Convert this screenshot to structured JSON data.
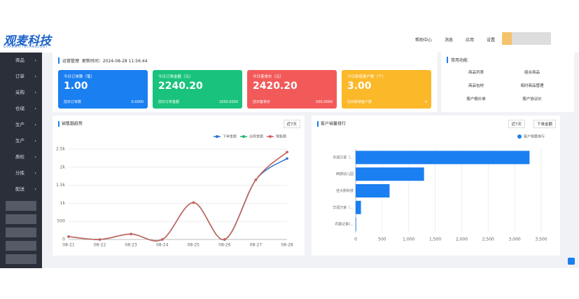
{
  "header": {
    "logo": "观麦科技",
    "logo_sub": "GUANMAITECHNOLOGY",
    "nav": [
      "帮助中心",
      "消息",
      "应用",
      "设置"
    ]
  },
  "sidebar": {
    "items": [
      "商品",
      "订单",
      "采购",
      "仓储",
      "生产",
      "生产",
      "质检",
      "分拣",
      "配送"
    ]
  },
  "summary": {
    "breadcrumb": "运营管理",
    "update_label": "更新时间：2024-08-28 11:56:44",
    "cards": [
      {
        "title": "今日订单数（笔）",
        "value": "1.00",
        "sub_label": "前日订单数",
        "sub_value": "0.0000"
      },
      {
        "title": "今日订单金额（元）",
        "value": "2240.20",
        "sub_label": "前日订单金额",
        "sub_value": "1650.0000"
      },
      {
        "title": "今日客单价（元）",
        "value": "2420.20",
        "sub_label": "前日客单价",
        "sub_value": "550.0000"
      },
      {
        "title": "今日新增客户数（个）",
        "value": "3.00",
        "sub_label": "前日新增客户数",
        "sub_value": "0"
      }
    ]
  },
  "shortcuts": {
    "title": "常用功能",
    "items": [
      "商品列表",
      "组合商品",
      "商品包材",
      "临时商品管理",
      "客户报价单",
      "客户协议价"
    ]
  },
  "chart_data": [
    {
      "type": "line",
      "title": "销售额趋势",
      "filter": "近7天",
      "categories": [
        "08-21",
        "08-22",
        "08-23",
        "08-24",
        "08-25",
        "08-26",
        "08-27",
        "08-28"
      ],
      "series": [
        {
          "name": "下单金额",
          "color": "#2f6fd0",
          "values": [
            80,
            0,
            150,
            0,
            1020,
            0,
            1650,
            2240
          ]
        },
        {
          "name": "出库金额",
          "color": "#22b573",
          "values": [
            80,
            0,
            150,
            0,
            1020,
            0,
            1650,
            2420
          ]
        },
        {
          "name": "销售额",
          "color": "#d0605a",
          "values": [
            80,
            0,
            150,
            0,
            1020,
            0,
            1650,
            2420
          ]
        }
      ],
      "ylim": [
        0,
        2500
      ],
      "yticks": [
        0,
        500,
        {
          "value": 1000,
          "label": "1k"
        },
        {
          "value": 1500,
          "label": "1.5k"
        },
        {
          "value": 2000,
          "label": "2k"
        },
        {
          "value": 2500,
          "label": "2.5k"
        }
      ],
      "grid": true
    },
    {
      "type": "bar",
      "orientation": "horizontal",
      "title": "客户销量排行",
      "filters": [
        "近7天",
        "下单金额"
      ],
      "categories": [
        "华润万家（...",
        "西部幼儿园",
        "佳大购科技",
        "华润万家（...",
        "农副记食(..."
      ],
      "series": [
        {
          "name": "客户销量排行",
          "color": "#1a7ff0",
          "values": [
            3280,
            1290,
            640,
            100,
            10
          ]
        }
      ],
      "xlim": [
        0,
        3500
      ],
      "xticks": [
        0,
        500,
        {
          "value": 1000,
          "label": "1,000"
        },
        {
          "value": 1500,
          "label": "1,500"
        },
        {
          "value": 2000,
          "label": "2,000"
        },
        {
          "value": 2500,
          "label": "2,500"
        },
        {
          "value": 3000,
          "label": "3,000"
        },
        {
          "value": 3500,
          "label": "3,500"
        }
      ],
      "grid": true
    }
  ]
}
